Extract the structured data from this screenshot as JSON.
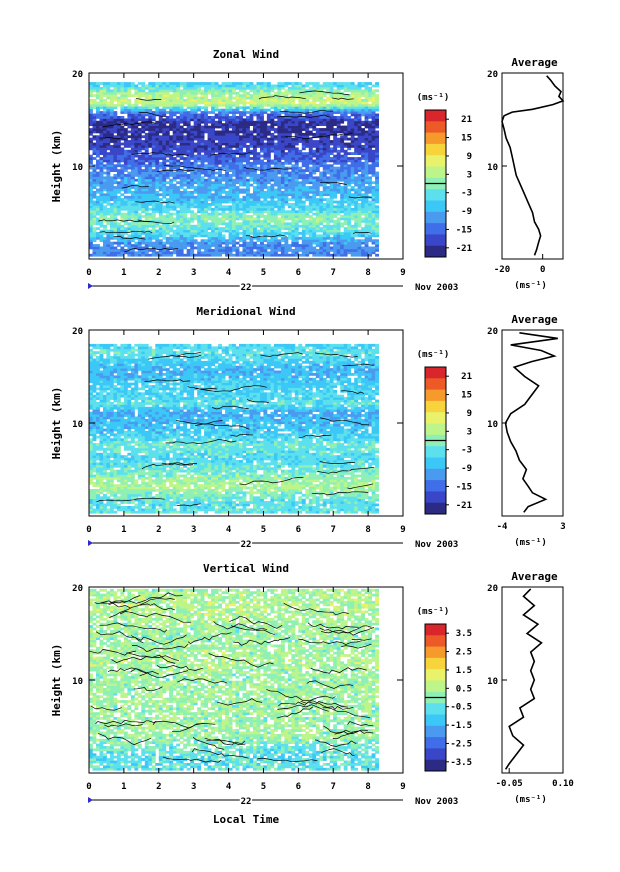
{
  "figure": {
    "x_axis_label": "Local Time",
    "date_label": "Nov 2003",
    "day_label": "22"
  },
  "colorbar_colors": [
    "#2b2b86",
    "#3a46c8",
    "#3f6ee8",
    "#4a9af0",
    "#3cc8f6",
    "#5de0ee",
    "#8ef0b4",
    "#bdf58a",
    "#e8f26a",
    "#f8d43c",
    "#f79a2c",
    "#ec5a28",
    "#d8262c"
  ],
  "chart_data": [
    {
      "type": "heatmap",
      "title": "Zonal Wind",
      "xlabel": "",
      "ylabel": "Height (km)",
      "xlim": [
        0,
        9
      ],
      "ylim": [
        0,
        20
      ],
      "x_ticks": [
        "0",
        "1",
        "2",
        "3",
        "4",
        "5",
        "6",
        "7",
        "8",
        "9"
      ],
      "y_ticks": [
        "10",
        "20"
      ],
      "colorbar": {
        "unit": "(ms⁻¹)",
        "ticks": [
          "21",
          "15",
          "9",
          "3",
          "-3",
          "-9",
          "-15",
          "-21"
        ],
        "range": [
          -24,
          24
        ]
      },
      "profile": [
        [
          -4,
          0.4
        ],
        [
          -3,
          1
        ],
        [
          -2,
          1.8
        ],
        [
          -1,
          2.5
        ],
        [
          -2,
          3.2
        ],
        [
          -4,
          4
        ],
        [
          -5,
          5
        ],
        [
          -7,
          6
        ],
        [
          -9,
          7
        ],
        [
          -11,
          8
        ],
        [
          -13,
          9
        ],
        [
          -14,
          10
        ],
        [
          -15,
          11
        ],
        [
          -16,
          12
        ],
        [
          -18,
          13
        ],
        [
          -19,
          14
        ],
        [
          -20,
          14.8
        ],
        [
          -19,
          15.4
        ],
        [
          -15,
          15.8
        ],
        [
          -5,
          16.1
        ],
        [
          5,
          16.6
        ],
        [
          10,
          17
        ],
        [
          8,
          17.5
        ],
        [
          9,
          18
        ],
        [
          6,
          18.6
        ],
        [
          4,
          19.2
        ],
        [
          2,
          19.7
        ]
      ],
      "series": [
        {
          "name": "",
          "levels": [
            [
              0,
              -13
            ],
            [
              1.5,
              -12
            ],
            [
              2.8,
              -4
            ],
            [
              4.2,
              0
            ],
            [
              5.4,
              -5
            ],
            [
              6.5,
              -8
            ],
            [
              7.7,
              -10
            ],
            [
              9,
              -12
            ],
            [
              10,
              -14
            ],
            [
              11,
              -17
            ],
            [
              12,
              -19
            ],
            [
              13,
              -20
            ],
            [
              14.5,
              -21
            ],
            [
              15.6,
              -14
            ],
            [
              16.6,
              5
            ],
            [
              17.5,
              3
            ],
            [
              18.5,
              -4
            ],
            [
              19.3,
              -8
            ]
          ]
        }
      ],
      "profile_xlim": [
        -20,
        10
      ],
      "profile_ticks": [
        "-20",
        "0"
      ],
      "profile_unit": "(ms⁻¹)",
      "profile_title": "Average"
    },
    {
      "type": "heatmap",
      "title": "Meridional Wind",
      "xlabel": "",
      "ylabel": "Height (km)",
      "xlim": [
        0,
        9
      ],
      "ylim": [
        0,
        20
      ],
      "x_ticks": [
        "0",
        "1",
        "2",
        "3",
        "4",
        "5",
        "6",
        "7",
        "8",
        "9"
      ],
      "y_ticks": [
        "10",
        "20"
      ],
      "colorbar": {
        "unit": "(ms⁻¹)",
        "ticks": [
          "21",
          "15",
          "9",
          "3",
          "-3",
          "-9",
          "-15",
          "-21"
        ],
        "range": [
          -24,
          24
        ]
      },
      "profile": [
        [
          -1.5,
          0.4
        ],
        [
          -1,
          1
        ],
        [
          1,
          1.8
        ],
        [
          -0.5,
          2.5
        ],
        [
          -1,
          3.2
        ],
        [
          -1.6,
          4
        ],
        [
          -1.2,
          5
        ],
        [
          -2,
          6
        ],
        [
          -2.4,
          7
        ],
        [
          -3,
          8
        ],
        [
          -3.4,
          9
        ],
        [
          -3.6,
          10
        ],
        [
          -3,
          11
        ],
        [
          -1.4,
          12
        ],
        [
          -0.6,
          13
        ],
        [
          0.2,
          14
        ],
        [
          -1.4,
          15
        ],
        [
          -2.6,
          16
        ],
        [
          -0.6,
          16.6
        ],
        [
          2,
          17.2
        ],
        [
          0.5,
          17.8
        ],
        [
          -3,
          18.4
        ],
        [
          2.4,
          19.1
        ],
        [
          -2,
          19.7
        ]
      ],
      "series": [
        {
          "name": "",
          "levels": [
            [
              0,
              -3
            ],
            [
              1.5,
              -4
            ],
            [
              3,
              3
            ],
            [
              4.5,
              -1
            ],
            [
              6,
              -5
            ],
            [
              7.5,
              -2
            ],
            [
              9,
              -7
            ],
            [
              10,
              -8
            ],
            [
              11,
              -10
            ],
            [
              12,
              -3
            ],
            [
              13,
              -6
            ],
            [
              14,
              -6
            ],
            [
              15.5,
              -9
            ],
            [
              16.6,
              -6
            ],
            [
              17.5,
              -3
            ],
            [
              18.4,
              -6
            ]
          ]
        }
      ],
      "profile_xlim": [
        -4,
        3
      ],
      "profile_ticks": [
        "-4",
        "3"
      ],
      "profile_unit": "(ms⁻¹)",
      "profile_title": "Average"
    },
    {
      "type": "heatmap",
      "title": "Vertical Wind",
      "xlabel": "Local Time",
      "ylabel": "Height (km)",
      "xlim": [
        0,
        9
      ],
      "ylim": [
        0,
        20
      ],
      "x_ticks": [
        "0",
        "1",
        "2",
        "3",
        "4",
        "5",
        "6",
        "7",
        "8",
        "9"
      ],
      "y_ticks": [
        "10",
        "20"
      ],
      "colorbar": {
        "unit": "(ms⁻¹)",
        "ticks": [
          "3.5",
          "2.5",
          "1.5",
          "0.5",
          "-0.5",
          "-1.5",
          "-2.5",
          "-3.5"
        ],
        "range": [
          -4,
          4
        ]
      },
      "profile": [
        [
          -0.06,
          0.4
        ],
        [
          -0.05,
          1
        ],
        [
          -0.03,
          2
        ],
        [
          -0.01,
          3
        ],
        [
          -0.04,
          4
        ],
        [
          -0.05,
          5
        ],
        [
          -0.01,
          6
        ],
        [
          -0.02,
          7
        ],
        [
          0.02,
          8
        ],
        [
          0.01,
          9
        ],
        [
          0.02,
          10
        ],
        [
          0.01,
          11
        ],
        [
          0.02,
          12
        ],
        [
          0.01,
          13
        ],
        [
          0.04,
          14
        ],
        [
          0.0,
          15
        ],
        [
          0.03,
          16
        ],
        [
          -0.01,
          17
        ],
        [
          0.02,
          18
        ],
        [
          -0.01,
          19
        ],
        [
          0.01,
          19.8
        ]
      ],
      "series": [
        {
          "name": "",
          "levels": [
            [
              0,
              -0.6
            ],
            [
              2,
              -0.6
            ],
            [
              4,
              0.3
            ],
            [
              6,
              0.2
            ],
            [
              8,
              0.3
            ],
            [
              10,
              0.2
            ],
            [
              12,
              0.4
            ],
            [
              14,
              0.2
            ],
            [
              16,
              0.3
            ],
            [
              18,
              0.5
            ],
            [
              19.6,
              0.3
            ]
          ]
        }
      ],
      "profile_xlim": [
        -0.07,
        0.1
      ],
      "profile_ticks": [
        "-0.05",
        "0.10"
      ],
      "profile_unit": "(ms⁻¹)",
      "profile_title": "Average"
    }
  ]
}
